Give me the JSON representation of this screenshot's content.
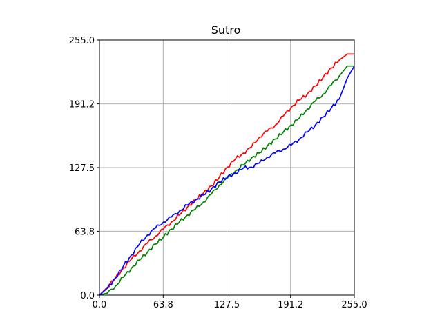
{
  "chart_data": {
    "type": "line",
    "title": "Sutro",
    "xlabel": "",
    "ylabel": "",
    "xlim": [
      0,
      255
    ],
    "ylim": [
      0,
      255
    ],
    "xticks": [
      0.0,
      63.8,
      127.5,
      191.2,
      255.0
    ],
    "yticks": [
      0.0,
      63.8,
      127.5,
      191.2,
      255.0
    ],
    "xtick_labels": [
      "0.0",
      "63.8",
      "127.5",
      "191.2",
      "255.0"
    ],
    "ytick_labels": [
      "0.0",
      "63.8",
      "127.5",
      "191.2",
      "255.0"
    ],
    "grid": true,
    "series": [
      {
        "color": "#ff0000",
        "x": [
          0,
          8,
          16,
          24,
          32,
          40,
          48,
          56,
          64,
          72,
          80,
          88,
          96,
          104,
          112,
          120,
          128,
          136,
          144,
          152,
          160,
          168,
          176,
          184,
          192,
          200,
          208,
          216,
          224,
          232,
          240,
          248,
          255
        ],
        "y": [
          0,
          8,
          17,
          27,
          36,
          44,
          52,
          59,
          66,
          73,
          80,
          88,
          95,
          102,
          109,
          118,
          128,
          136,
          142,
          148,
          158,
          164,
          170,
          179,
          188,
          195,
          201,
          209,
          218,
          227,
          235,
          241,
          241
        ]
      },
      {
        "color": "#008000",
        "x": [
          0,
          8,
          16,
          24,
          32,
          40,
          48,
          56,
          64,
          72,
          80,
          88,
          96,
          104,
          112,
          120,
          128,
          136,
          144,
          152,
          160,
          168,
          176,
          184,
          192,
          200,
          208,
          216,
          224,
          232,
          240,
          248,
          255
        ],
        "y": [
          0,
          2,
          9,
          18,
          27,
          35,
          43,
          51,
          58,
          66,
          73,
          80,
          86,
          93,
          101,
          110,
          117,
          124,
          130,
          137,
          142,
          149,
          156,
          163,
          170,
          177,
          186,
          194,
          201,
          210,
          219,
          229,
          229
        ]
      },
      {
        "color": "#0000ff",
        "x": [
          0,
          8,
          16,
          24,
          32,
          40,
          48,
          56,
          64,
          72,
          80,
          88,
          96,
          104,
          112,
          120,
          128,
          136,
          144,
          152,
          160,
          168,
          176,
          184,
          192,
          200,
          208,
          216,
          224,
          232,
          240,
          248,
          255
        ],
        "y": [
          0,
          7,
          17,
          29,
          40,
          51,
          60,
          67,
          73,
          78,
          84,
          90,
          95,
          100,
          106,
          113,
          118,
          122,
          127,
          128,
          132,
          138,
          142,
          146,
          150,
          156,
          163,
          170,
          178,
          187,
          196,
          217,
          229
        ]
      }
    ]
  }
}
